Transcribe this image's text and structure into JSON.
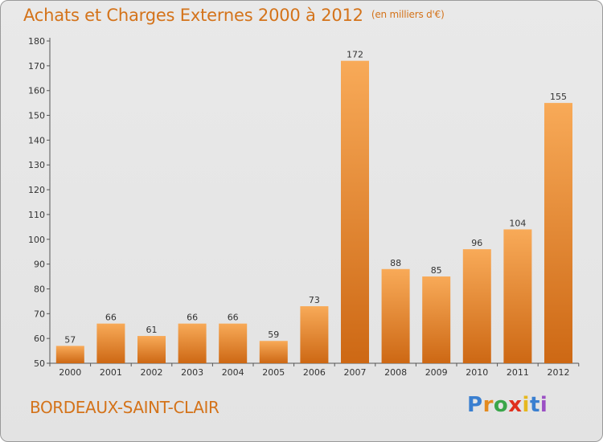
{
  "title": "Achats et Charges Externes 2000 à 2012",
  "subtitle": "(en milliers d'€)",
  "commune": "BORDEAUX-SAINT-CLAIR",
  "logo_text": "Proxiti",
  "colors": {
    "title": "#d4731a",
    "bar_light": "#f7a754",
    "bar_dark": "#cf6a16",
    "background": "#e6e6e6"
  },
  "chart_data": {
    "type": "bar",
    "title": "Achats et Charges Externes 2000 à 2012",
    "subtitle": "(en milliers d'€)",
    "xlabel": "",
    "ylabel": "",
    "categories": [
      "2000",
      "2001",
      "2002",
      "2003",
      "2004",
      "2005",
      "2006",
      "2007",
      "2008",
      "2009",
      "2010",
      "2011",
      "2012"
    ],
    "values": [
      57,
      66,
      61,
      66,
      66,
      59,
      73,
      172,
      88,
      85,
      96,
      104,
      155
    ],
    "ylim": [
      50,
      180
    ],
    "yticks": [
      50,
      60,
      70,
      80,
      90,
      100,
      110,
      120,
      130,
      140,
      150,
      160,
      170,
      180
    ],
    "grid": false,
    "legend": "none"
  }
}
